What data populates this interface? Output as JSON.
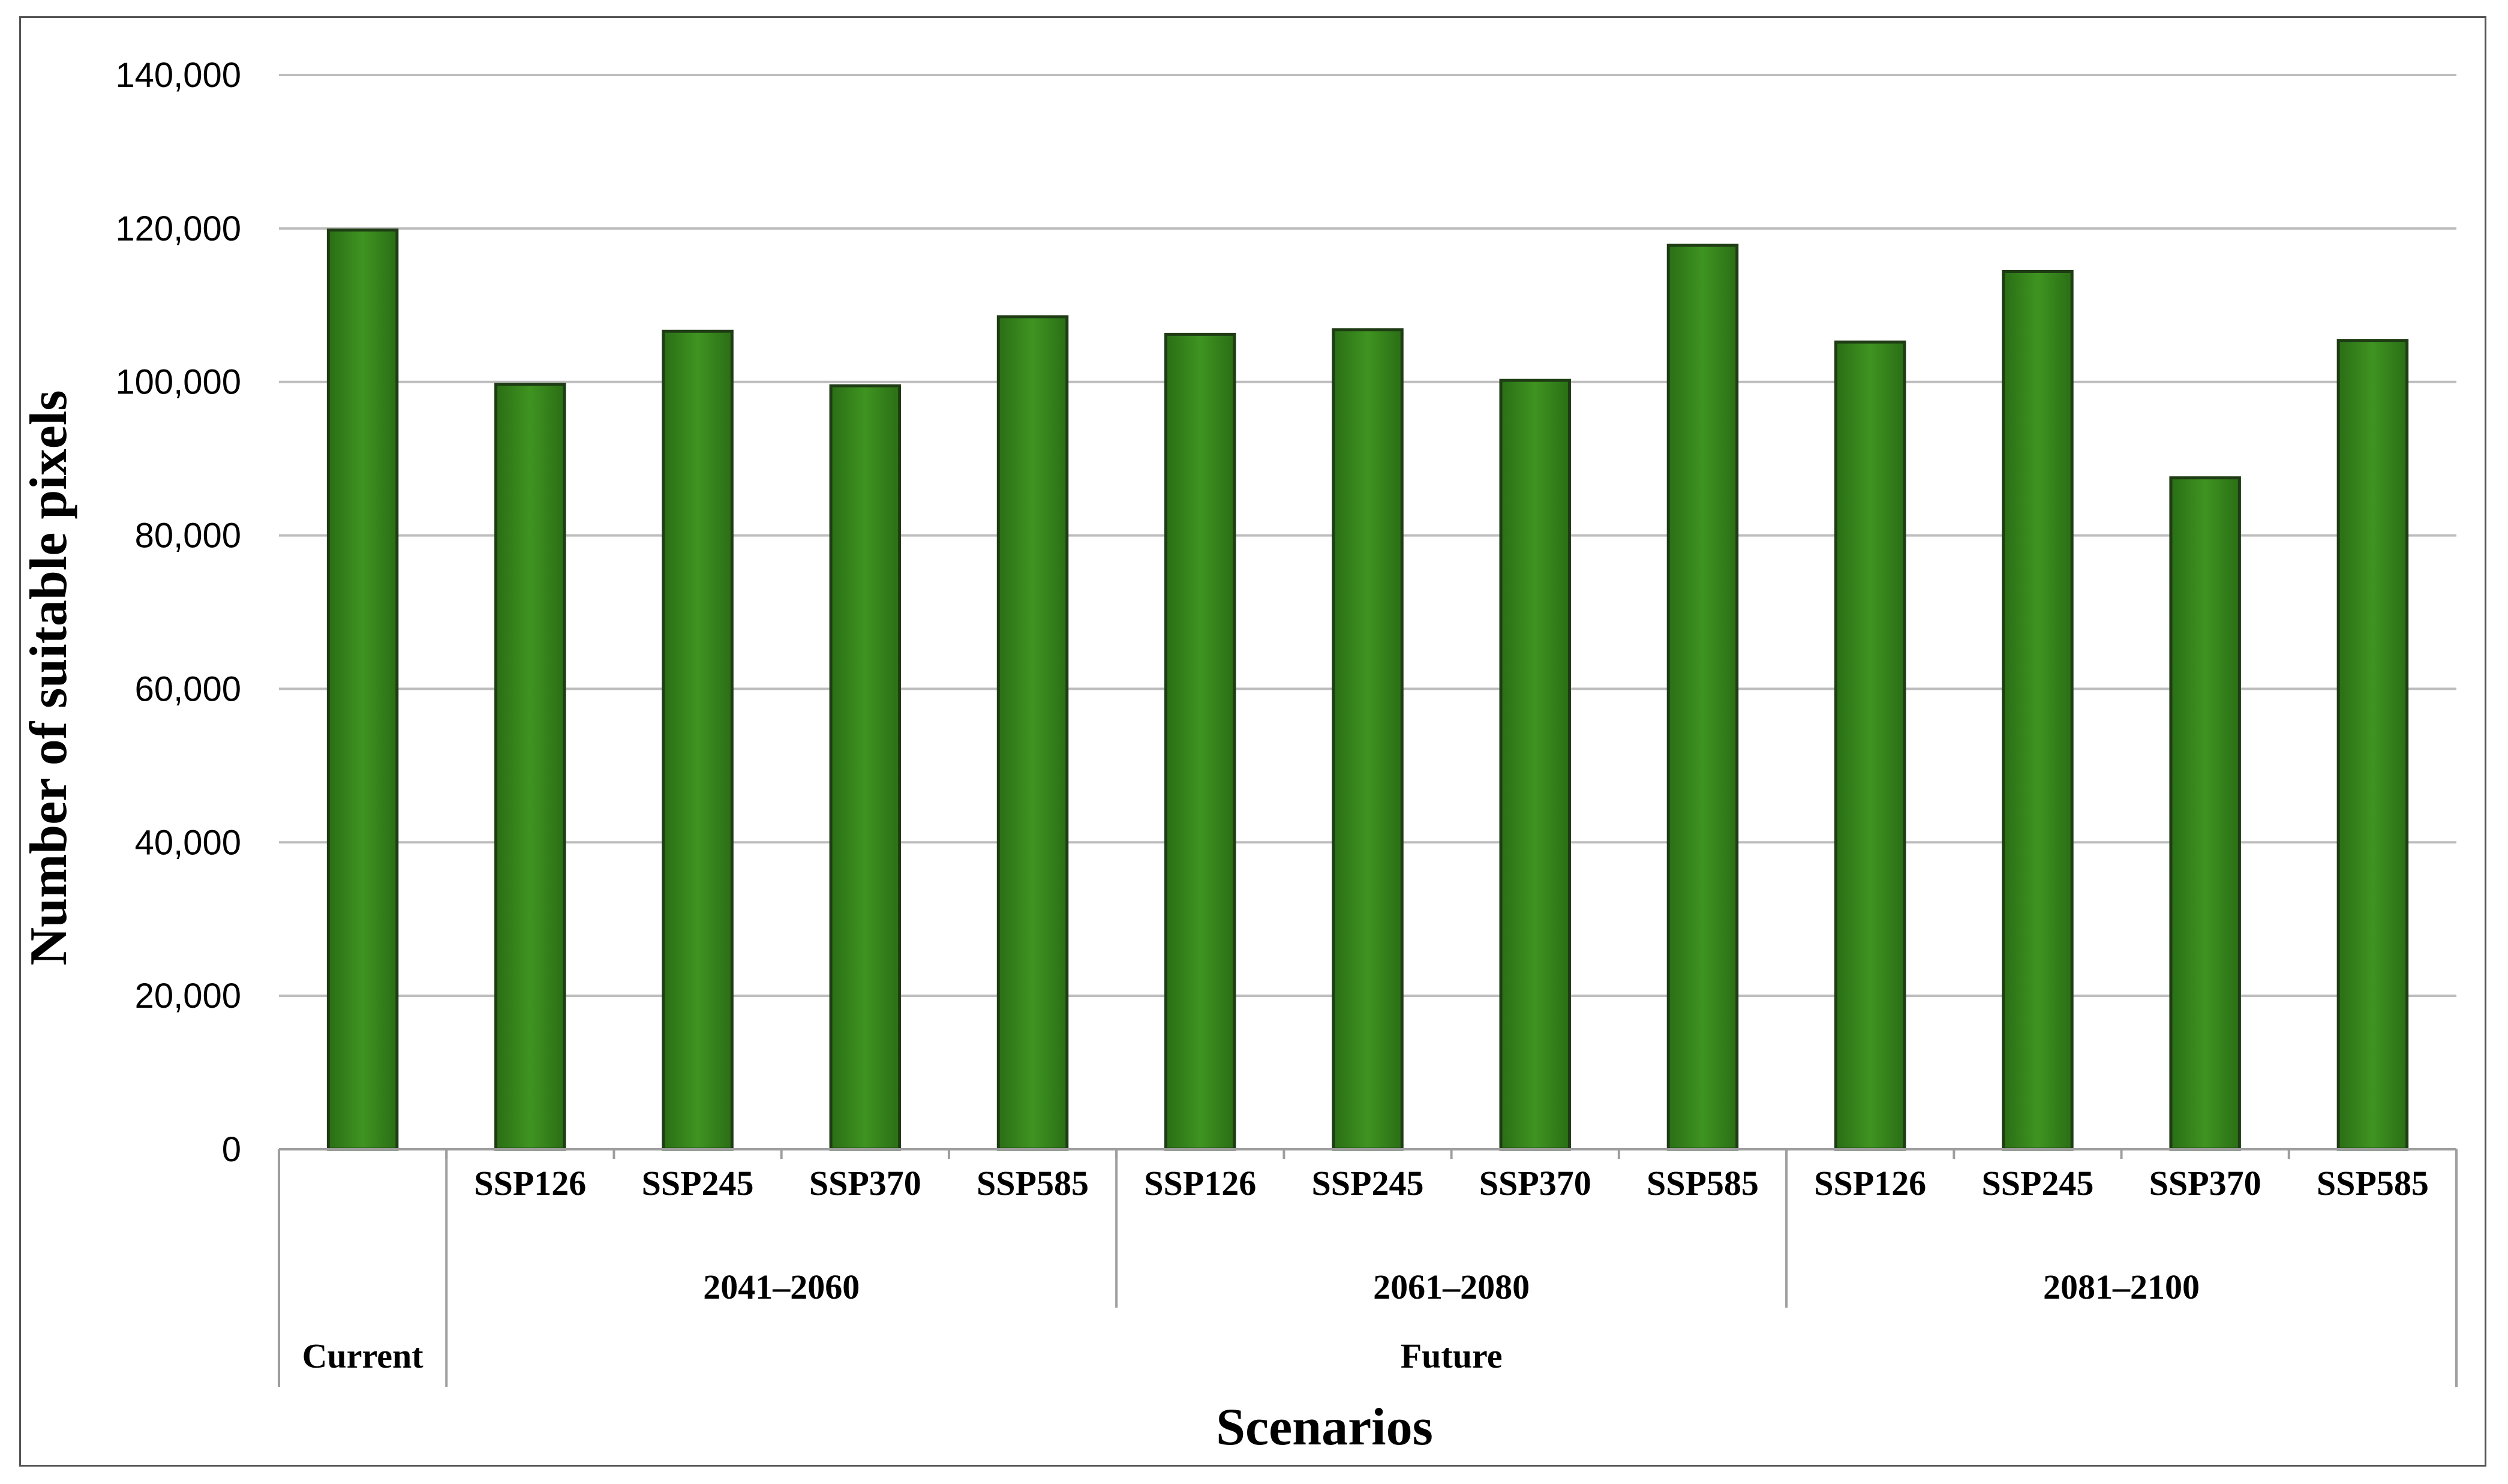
{
  "chart_data": {
    "type": "bar",
    "xlabel": "Scenarios",
    "ylabel": "Number of suitable pixels",
    "ylim": [
      0,
      140000
    ],
    "yticks": [
      0,
      20000,
      40000,
      60000,
      80000,
      100000,
      120000,
      140000
    ],
    "ytick_labels": [
      "0",
      "20,000",
      "40,000",
      "60,000",
      "80,000",
      "100,000",
      "120,000",
      "140,000"
    ],
    "grid": true,
    "legend": "none",
    "bar_color": "#3a8a1e",
    "bar_edge_color": "#1f3d14",
    "categories": [
      "",
      "SSP126",
      "SSP245",
      "SSP370",
      "SSP585",
      "SSP126",
      "SSP245",
      "SSP370",
      "SSP585",
      "SSP126",
      "SSP245",
      "SSP370",
      "SSP585"
    ],
    "values": [
      119800,
      99700,
      106600,
      99500,
      108500,
      106200,
      106800,
      100200,
      117800,
      105200,
      114400,
      87500,
      105400
    ],
    "group_labels": [
      {
        "label": "2041–2060",
        "start": 1,
        "end": 4
      },
      {
        "label": "2061–2080",
        "start": 5,
        "end": 8
      },
      {
        "label": "2081–2100",
        "start": 9,
        "end": 12
      }
    ],
    "top_groups": [
      {
        "label": "Current",
        "start": 0,
        "end": 0
      },
      {
        "label": "Future",
        "start": 1,
        "end": 12
      }
    ]
  }
}
